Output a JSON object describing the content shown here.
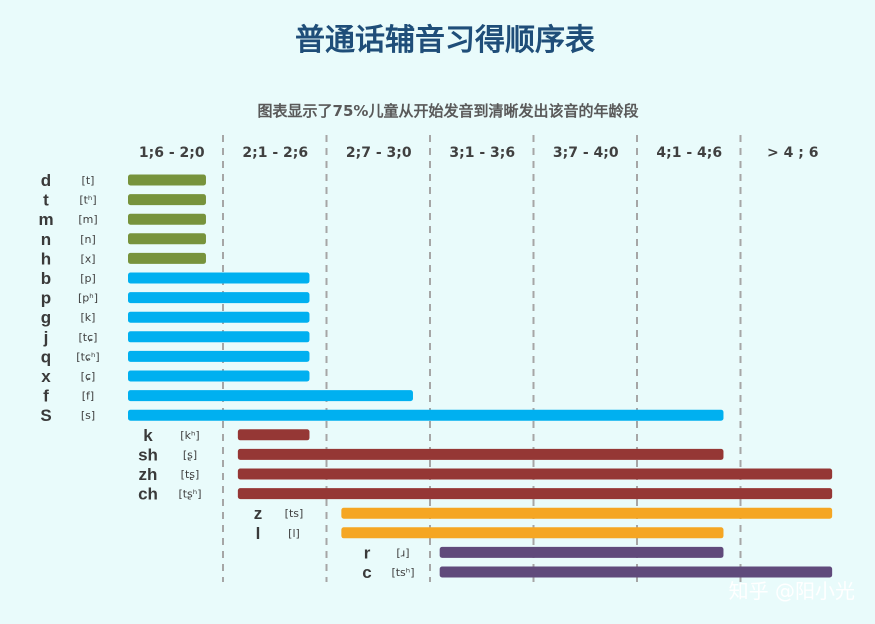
{
  "watermark": "知乎 @阳小光",
  "chart_data": {
    "type": "bar",
    "orientation": "horizontal-range",
    "title": "普通话辅音习得顺序表",
    "subtitle": "图表显示了75%儿童从开始发音到清晰发出该音的年龄段",
    "age_ranges": [
      "1;6 - 2;0",
      "2;1 - 2;6",
      "2;7 - 3;0",
      "3;1 - 3;6",
      "3;7 - 4;0",
      "4;1 - 4;6",
      ">    4 ; 6"
    ],
    "grid": "dashed vertical separators between age ranges",
    "series_colors": [
      "#77933c",
      "#00b0f0",
      "#953735",
      "#f5a623",
      "#604a7b"
    ],
    "consonants": [
      {
        "letter": "d",
        "ipa": "[t]",
        "start": 0,
        "end": 0.85,
        "group": 0
      },
      {
        "letter": "t",
        "ipa": "[tʰ]",
        "start": 0,
        "end": 0.85,
        "group": 0
      },
      {
        "letter": "m",
        "ipa": "[m]",
        "start": 0,
        "end": 0.85,
        "group": 0
      },
      {
        "letter": "n",
        "ipa": "[n]",
        "start": 0,
        "end": 0.85,
        "group": 0
      },
      {
        "letter": "h",
        "ipa": "[x]",
        "start": 0,
        "end": 0.85,
        "group": 0
      },
      {
        "letter": "b",
        "ipa": "[p]",
        "start": 0,
        "end": 1.85,
        "group": 1
      },
      {
        "letter": "p",
        "ipa": "[pʰ]",
        "start": 0,
        "end": 1.85,
        "group": 1
      },
      {
        "letter": "g",
        "ipa": "[k]",
        "start": 0,
        "end": 1.85,
        "group": 1
      },
      {
        "letter": "j",
        "ipa": "[tɕ]",
        "start": 0,
        "end": 1.85,
        "group": 1
      },
      {
        "letter": "q",
        "ipa": "[tɕʰ]",
        "start": 0,
        "end": 1.85,
        "group": 1
      },
      {
        "letter": "x",
        "ipa": "[ɕ]",
        "start": 0,
        "end": 1.85,
        "group": 1
      },
      {
        "letter": "f",
        "ipa": "[f]",
        "start": 0,
        "end": 2.85,
        "group": 1
      },
      {
        "letter": "S",
        "ipa": "[s]",
        "start": 0,
        "end": 5.85,
        "group": 1
      },
      {
        "letter": "k",
        "ipa": "[kʰ]",
        "start": 1.1,
        "end": 1.85,
        "group": 2
      },
      {
        "letter": "sh",
        "ipa": "[ʂ]",
        "start": 1.1,
        "end": 5.85,
        "group": 2
      },
      {
        "letter": "zh",
        "ipa": "[tʂ]",
        "start": 1.1,
        "end": 6.9,
        "group": 2
      },
      {
        "letter": "ch",
        "ipa": "[tʂʰ]",
        "start": 1.1,
        "end": 6.9,
        "group": 2
      },
      {
        "letter": "z",
        "ipa": "[ts]",
        "start": 2.1,
        "end": 6.9,
        "group": 3
      },
      {
        "letter": "l",
        "ipa": "[l]",
        "start": 2.1,
        "end": 5.85,
        "group": 3
      },
      {
        "letter": "r",
        "ipa": "[ɹ]",
        "start": 3.05,
        "end": 5.85,
        "group": 4
      },
      {
        "letter": "c",
        "ipa": "[tsʰ]",
        "start": 3.05,
        "end": 6.9,
        "group": 4
      }
    ]
  }
}
